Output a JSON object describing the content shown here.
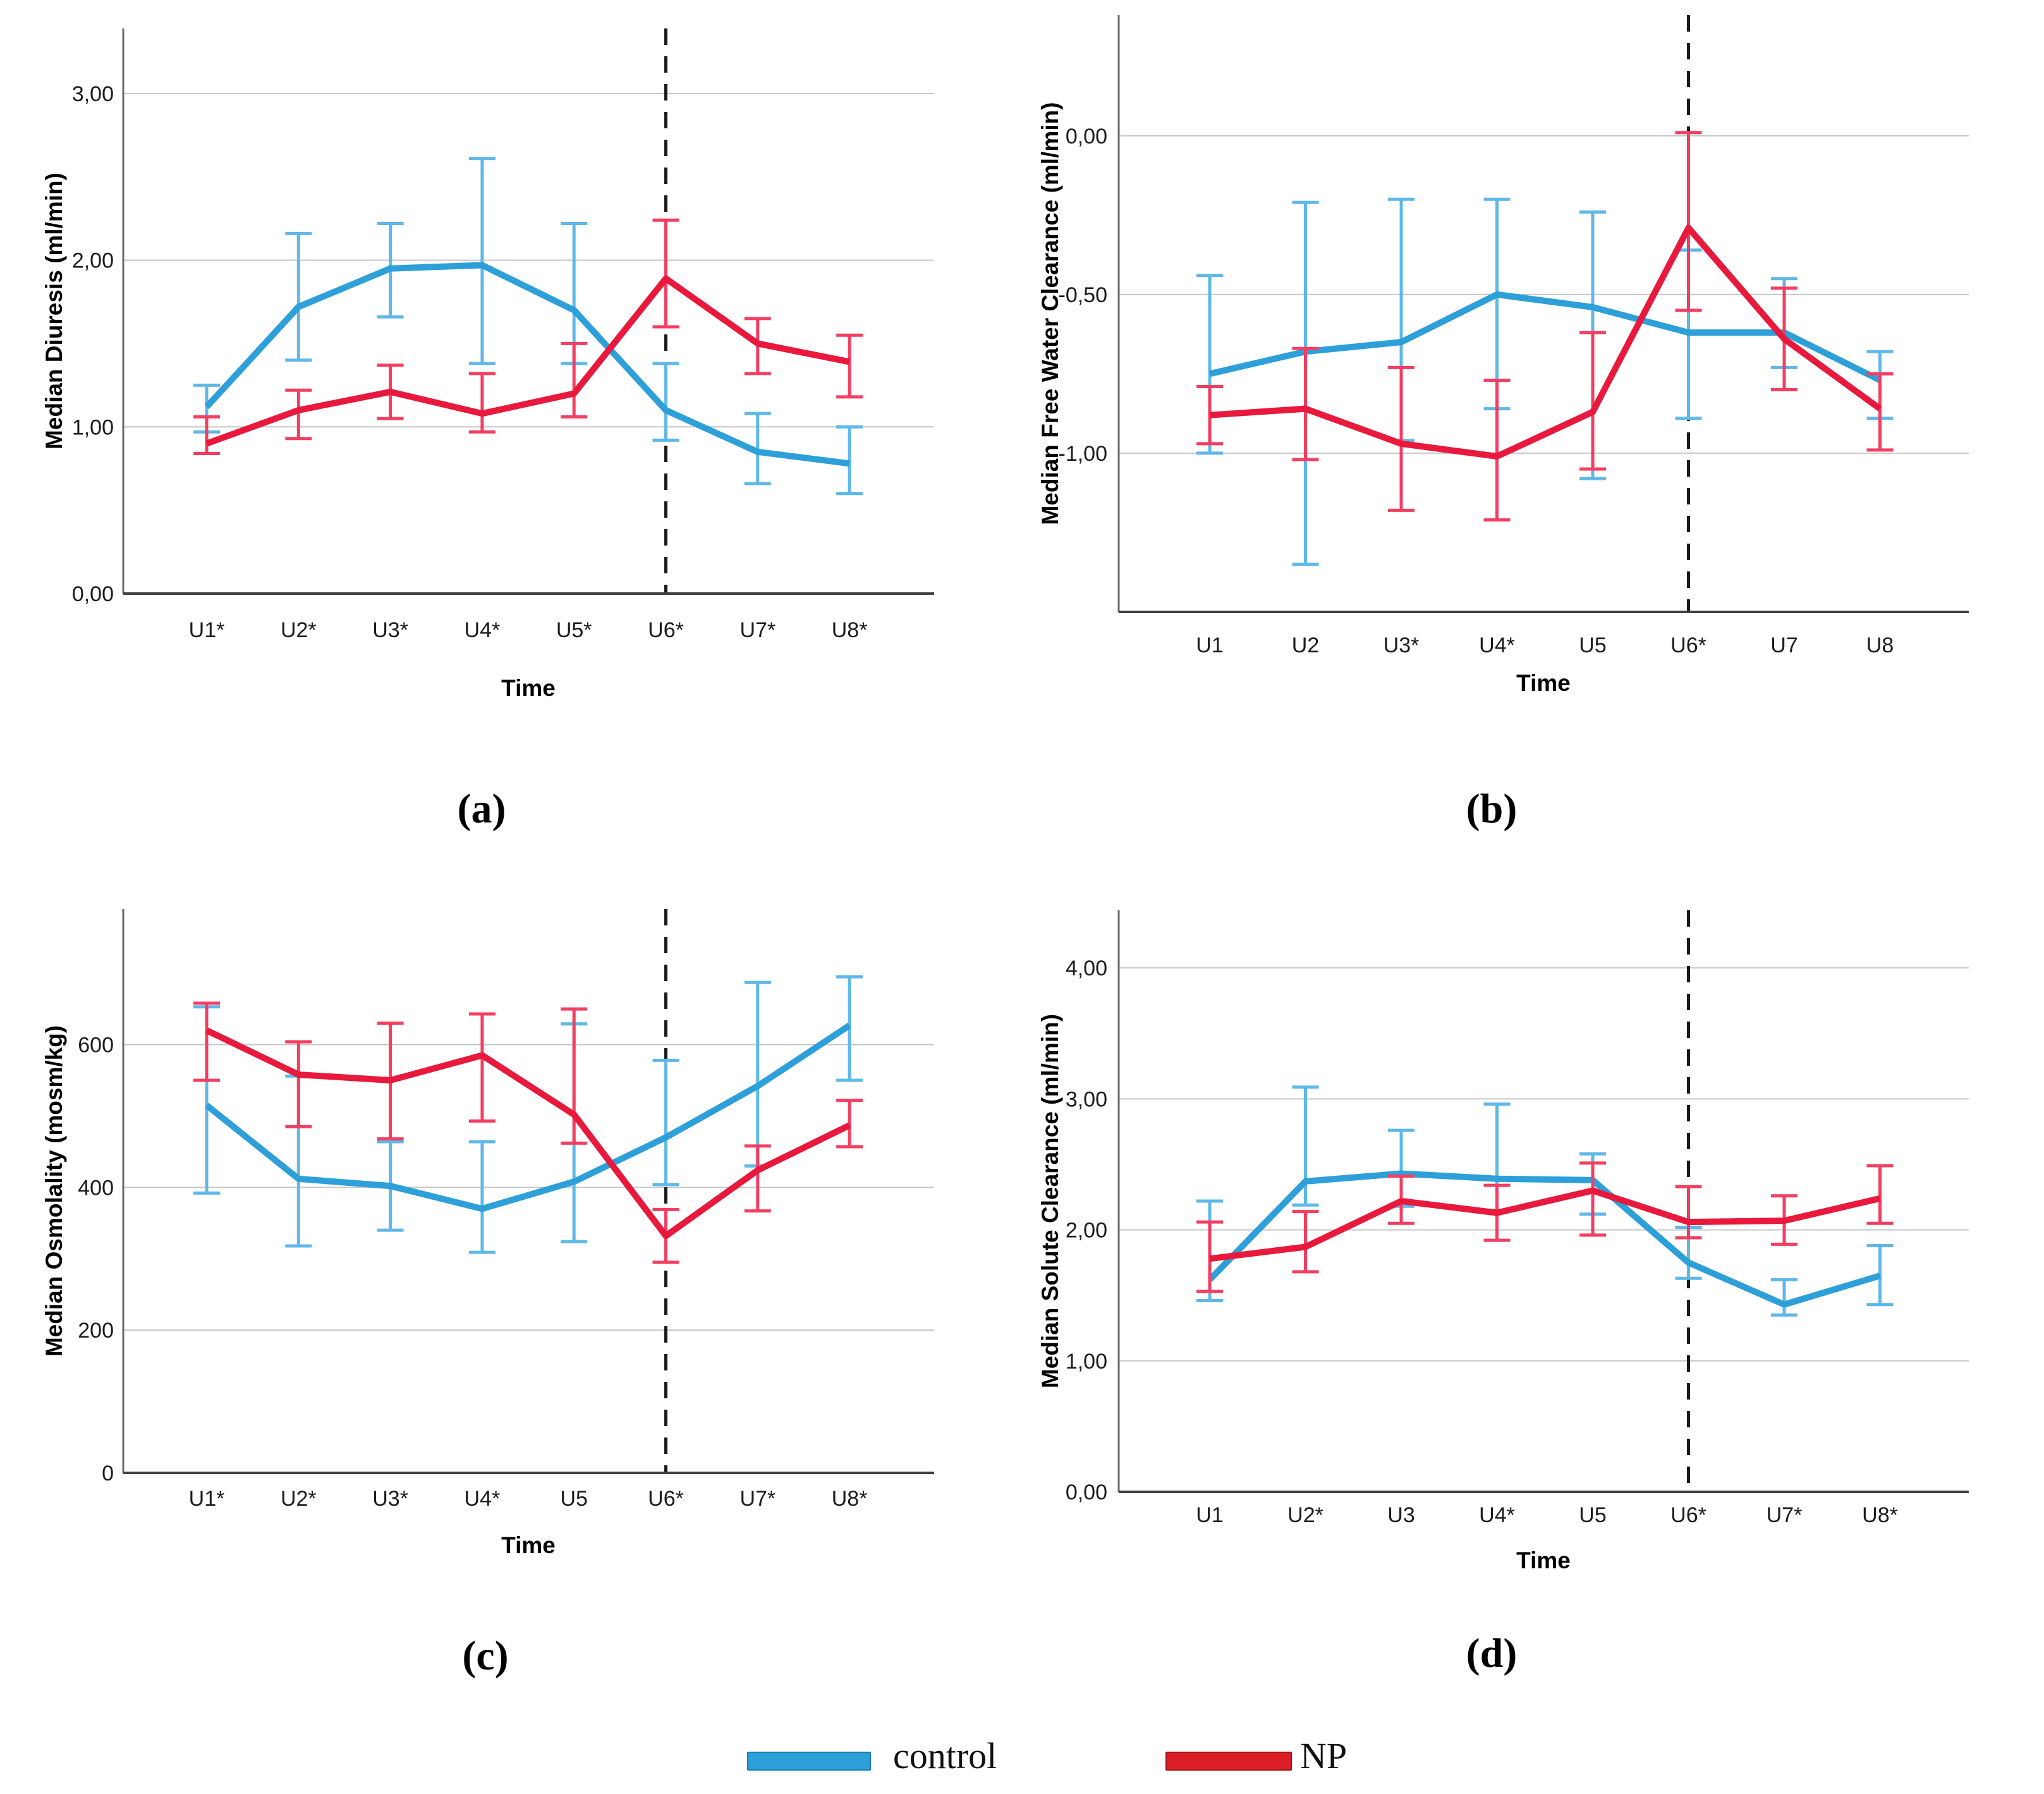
{
  "page": {
    "background": "#ffffff"
  },
  "legend": {
    "position": "bottom",
    "entries": [
      {
        "label": "control",
        "color": "#2D9FD9",
        "border_color": "#1B7FB4"
      },
      {
        "label": "NP",
        "color": "#DC1F26",
        "border_color": "#A31216"
      }
    ]
  },
  "chart_data": [
    {
      "id": "a",
      "caption": "(a)",
      "type": "line",
      "title": "",
      "xlabel": "Time",
      "ylabel": "Median Diuresis (ml/min)",
      "categories": [
        "U1*",
        "U2*",
        "U3*",
        "U4*",
        "U5*",
        "U6*",
        "U7*",
        "U8*"
      ],
      "yticks": [
        {
          "value": 0,
          "label": "0,00"
        },
        {
          "value": 1,
          "label": "1,00"
        },
        {
          "value": 2,
          "label": "2,00"
        },
        {
          "value": 3,
          "label": "3,00"
        }
      ],
      "ylim": [
        0,
        3.39
      ],
      "grid": true,
      "dashed_line_at_category": "U6*",
      "series": [
        {
          "name": "control",
          "color": "#2D9FD9",
          "error_color": "#5FB8E8",
          "values": [
            1.12,
            1.72,
            1.95,
            1.97,
            1.7,
            1.1,
            0.85,
            0.78
          ],
          "err_low": [
            0.97,
            1.4,
            1.66,
            1.38,
            1.38,
            0.92,
            0.66,
            0.6
          ],
          "err_high": [
            1.25,
            2.16,
            2.22,
            2.61,
            2.22,
            1.38,
            1.08,
            1.0
          ]
        },
        {
          "name": "NP",
          "color": "#E8193C",
          "error_color": "#F43E61",
          "values": [
            0.9,
            1.1,
            1.21,
            1.08,
            1.2,
            1.89,
            1.5,
            1.39
          ],
          "err_low": [
            0.84,
            0.93,
            1.05,
            0.97,
            1.06,
            1.6,
            1.32,
            1.18
          ],
          "err_high": [
            1.06,
            1.22,
            1.37,
            1.32,
            1.5,
            2.24,
            1.65,
            1.55
          ]
        }
      ]
    },
    {
      "id": "b",
      "caption": "(b)",
      "type": "line",
      "title": "",
      "xlabel": "Time",
      "ylabel": "Median Free Water Clearance (ml/min)",
      "categories": [
        "U1",
        "U2",
        "U3*",
        "U4*",
        "U5",
        "U6*",
        "U7",
        "U8"
      ],
      "yticks": [
        {
          "value": 0,
          "label": "0,00"
        },
        {
          "value": -0.5,
          "label": "-0,50"
        },
        {
          "value": -1,
          "label": "-1,00"
        }
      ],
      "ylim": [
        -1.5,
        0.38
      ],
      "grid": true,
      "dashed_line_at_category": "U6*",
      "series": [
        {
          "name": "control",
          "color": "#2D9FD9",
          "error_color": "#5FB8E8",
          "values": [
            -0.75,
            -0.68,
            -0.65,
            -0.5,
            -0.54,
            -0.62,
            -0.62,
            -0.77
          ],
          "err_low": [
            -1.0,
            -1.35,
            -0.96,
            -0.86,
            -1.08,
            -0.89,
            -0.73,
            -0.89
          ],
          "err_high": [
            -0.44,
            -0.21,
            -0.2,
            -0.2,
            -0.24,
            -0.36,
            -0.45,
            -0.68
          ]
        },
        {
          "name": "NP",
          "color": "#E8193C",
          "error_color": "#F43E61",
          "values": [
            -0.88,
            -0.86,
            -0.97,
            -1.01,
            -0.87,
            -0.29,
            -0.64,
            -0.86
          ],
          "err_low": [
            -0.97,
            -1.02,
            -1.18,
            -1.21,
            -1.05,
            -0.55,
            -0.8,
            -0.99
          ],
          "err_high": [
            -0.79,
            -0.67,
            -0.73,
            -0.77,
            -0.62,
            0.01,
            -0.48,
            -0.75
          ]
        }
      ]
    },
    {
      "id": "c",
      "caption": "(c)",
      "type": "line",
      "title": "",
      "xlabel": "Time",
      "ylabel": "Median Osmolality (mosm/kg)",
      "categories": [
        "U1*",
        "U2*",
        "U3*",
        "U4*",
        "U5",
        "U6*",
        "U7*",
        "U8*"
      ],
      "yticks": [
        {
          "value": 0,
          "label": "0"
        },
        {
          "value": 200,
          "label": "200"
        },
        {
          "value": 400,
          "label": "400"
        },
        {
          "value": 600,
          "label": "600"
        }
      ],
      "ylim": [
        0,
        790
      ],
      "grid": true,
      "dashed_line_at_category": "U6*",
      "series": [
        {
          "name": "control",
          "color": "#2D9FD9",
          "error_color": "#5FB8E8",
          "values": [
            515,
            412,
            402,
            370,
            408,
            470,
            542,
            627
          ],
          "err_low": [
            392,
            318,
            340,
            309,
            324,
            404,
            430,
            550
          ],
          "err_high": [
            653,
            556,
            464,
            464,
            629,
            578,
            687,
            695
          ]
        },
        {
          "name": "NP",
          "color": "#E8193C",
          "error_color": "#F43E61",
          "values": [
            620,
            558,
            550,
            585,
            502,
            332,
            424,
            487
          ],
          "err_low": [
            550,
            485,
            468,
            493,
            462,
            295,
            367,
            457
          ],
          "err_high": [
            658,
            604,
            630,
            643,
            650,
            369,
            458,
            522
          ]
        }
      ]
    },
    {
      "id": "d",
      "caption": "(d)",
      "type": "line",
      "title": "",
      "xlabel": "Time",
      "ylabel": "Median Solute Clearance (ml/min)",
      "categories": [
        "U1",
        "U2*",
        "U3",
        "U4*",
        "U5",
        "U6*",
        "U7*",
        "U8*"
      ],
      "yticks": [
        {
          "value": 0,
          "label": "0,00"
        },
        {
          "value": 1,
          "label": "1,00"
        },
        {
          "value": 2,
          "label": "2,00"
        },
        {
          "value": 3,
          "label": "3,00"
        },
        {
          "value": 4,
          "label": "4,00"
        }
      ],
      "ylim": [
        0,
        4.44
      ],
      "grid": true,
      "dashed_line_at_category": "U6*",
      "series": [
        {
          "name": "control",
          "color": "#2D9FD9",
          "error_color": "#5FB8E8",
          "values": [
            1.62,
            2.37,
            2.43,
            2.39,
            2.38,
            1.75,
            1.43,
            1.65
          ],
          "err_low": [
            1.46,
            2.19,
            2.18,
            2.15,
            2.12,
            1.63,
            1.35,
            1.43
          ],
          "err_high": [
            2.22,
            3.09,
            2.76,
            2.96,
            2.58,
            2.02,
            1.62,
            1.88
          ]
        },
        {
          "name": "NP",
          "color": "#E8193C",
          "error_color": "#F43E61",
          "values": [
            1.78,
            1.87,
            2.22,
            2.13,
            2.3,
            2.06,
            2.07,
            2.24
          ],
          "err_low": [
            1.53,
            1.68,
            2.05,
            1.92,
            1.96,
            1.94,
            1.89,
            2.05
          ],
          "err_high": [
            2.06,
            2.14,
            2.41,
            2.34,
            2.51,
            2.33,
            2.26,
            2.49
          ]
        }
      ]
    }
  ]
}
